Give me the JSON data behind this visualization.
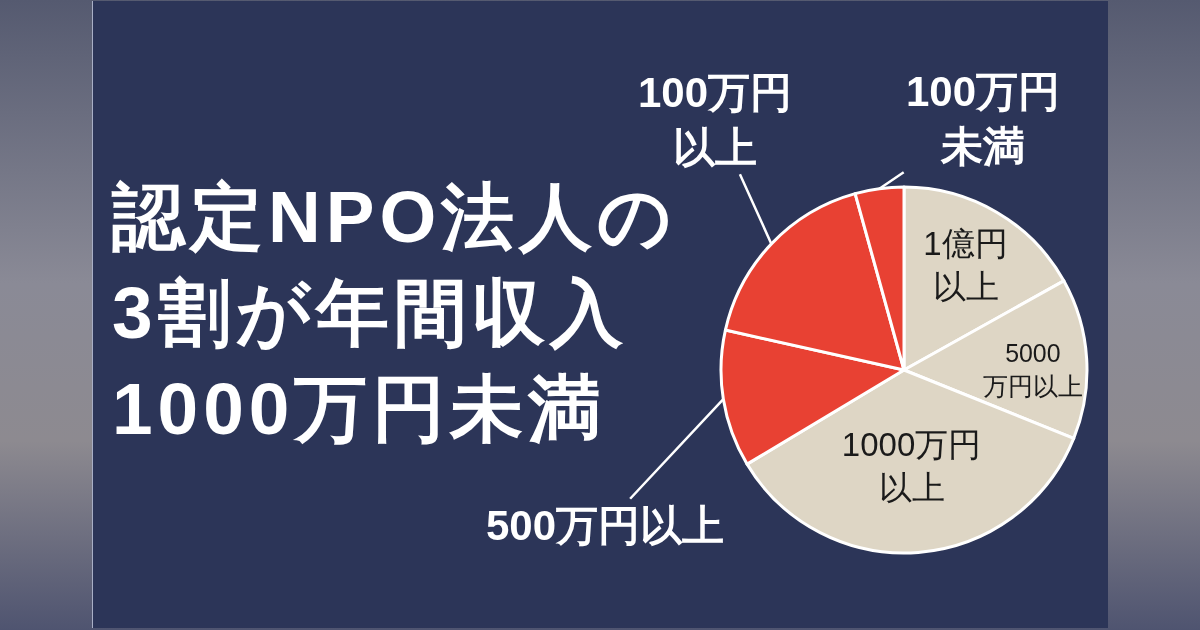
{
  "chart_data": {
    "type": "pie",
    "title": "認定NPO法人の\n3割が年間収入\n1000万円未満",
    "categories": [
      "1億円以上",
      "5000万円以上",
      "1000万円以上",
      "500万円以上",
      "100万円以上",
      "100万円未満"
    ],
    "values": [
      16.9,
      14.2,
      35.3,
      12.1,
      17.2,
      4.3
    ],
    "colors": [
      "#ded6c5",
      "#ded6c5",
      "#ded6c5",
      "#e84133",
      "#e84133",
      "#e84133"
    ]
  }
}
